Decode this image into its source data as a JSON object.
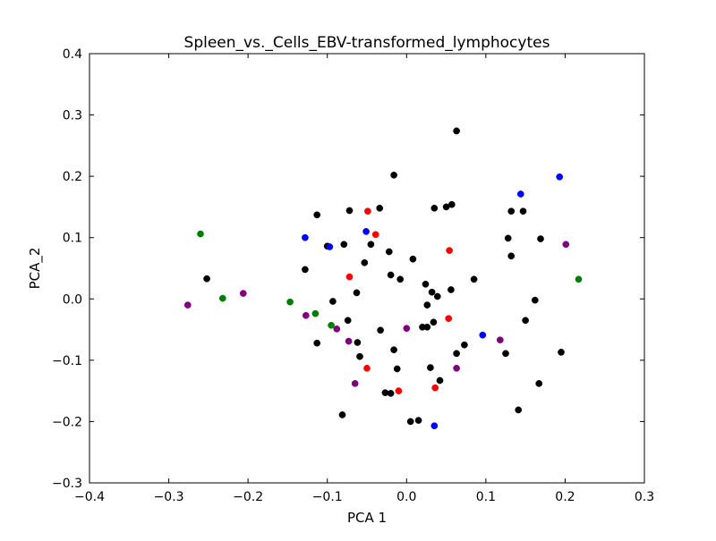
{
  "chart_data": {
    "type": "scatter",
    "title": "Spleen_vs._Cells_EBV-transformed_lymphocytes",
    "xlabel": "PCA 1",
    "ylabel": "PCA_2",
    "xlim": [
      -0.4,
      0.3
    ],
    "ylim": [
      -0.3,
      0.4
    ],
    "xticks": [
      -0.4,
      -0.3,
      -0.2,
      -0.1,
      0.0,
      0.1,
      0.2,
      0.3
    ],
    "yticks": [
      -0.3,
      -0.2,
      -0.1,
      0.0,
      0.1,
      0.2,
      0.3,
      0.4
    ],
    "xtick_labels": [
      "−0.4",
      "−0.3",
      "−0.2",
      "−0.1",
      "0.0",
      "0.1",
      "0.2",
      "0.3"
    ],
    "ytick_labels": [
      "−0.3",
      "−0.2",
      "−0.1",
      "0.0",
      "0.1",
      "0.2",
      "0.3",
      "0.4"
    ],
    "grid": false,
    "legend": "none",
    "series": [
      {
        "color": "#000000",
        "points": [
          [
            0.063,
            0.274
          ],
          [
            -0.016,
            0.202
          ],
          [
            -0.113,
            0.137
          ],
          [
            -0.072,
            0.144
          ],
          [
            -0.034,
            0.148
          ],
          [
            0.035,
            0.148
          ],
          [
            0.05,
            0.15
          ],
          [
            0.057,
            0.154
          ],
          [
            0.132,
            0.143
          ],
          [
            0.147,
            0.143
          ],
          [
            -0.1,
            0.086
          ],
          [
            -0.079,
            0.089
          ],
          [
            -0.045,
            0.089
          ],
          [
            0.128,
            0.099
          ],
          [
            0.169,
            0.098
          ],
          [
            -0.128,
            0.048
          ],
          [
            -0.053,
            0.059
          ],
          [
            -0.022,
            0.077
          ],
          [
            0.008,
            0.065
          ],
          [
            0.132,
            0.07
          ],
          [
            -0.252,
            0.033
          ],
          [
            -0.02,
            0.039
          ],
          [
            -0.008,
            0.032
          ],
          [
            0.085,
            0.032
          ],
          [
            0.024,
            0.024
          ],
          [
            -0.063,
            0.01
          ],
          [
            0.032,
            0.011
          ],
          [
            0.039,
            0.004
          ],
          [
            0.056,
            0.015
          ],
          [
            -0.093,
            -0.004
          ],
          [
            0.026,
            -0.01
          ],
          [
            0.162,
            -0.002
          ],
          [
            -0.074,
            -0.035
          ],
          [
            -0.033,
            -0.051
          ],
          [
            0.034,
            -0.038
          ],
          [
            0.02,
            -0.046
          ],
          [
            0.026,
            -0.046
          ],
          [
            0.15,
            -0.035
          ],
          [
            -0.113,
            -0.072
          ],
          [
            -0.062,
            -0.071
          ],
          [
            -0.016,
            -0.083
          ],
          [
            0.073,
            -0.075
          ],
          [
            0.063,
            -0.089
          ],
          [
            0.125,
            -0.089
          ],
          [
            0.195,
            -0.087
          ],
          [
            -0.059,
            -0.094
          ],
          [
            -0.012,
            -0.114
          ],
          [
            0.03,
            -0.112
          ],
          [
            0.042,
            -0.133
          ],
          [
            -0.027,
            -0.153
          ],
          [
            -0.02,
            -0.154
          ],
          [
            0.167,
            -0.138
          ],
          [
            -0.081,
            -0.189
          ],
          [
            0.005,
            -0.2
          ],
          [
            0.015,
            -0.198
          ],
          [
            0.141,
            -0.181
          ]
        ]
      },
      {
        "color": "#ff0000",
        "points": [
          [
            -0.049,
            0.143
          ],
          [
            -0.039,
            0.105
          ],
          [
            0.054,
            0.079
          ],
          [
            -0.072,
            0.036
          ],
          [
            0.053,
            -0.032
          ],
          [
            -0.05,
            -0.113
          ],
          [
            -0.01,
            -0.15
          ],
          [
            0.036,
            -0.145
          ]
        ]
      },
      {
        "color": "#0000ff",
        "points": [
          [
            0.193,
            0.199
          ],
          [
            0.144,
            0.171
          ],
          [
            -0.051,
            0.11
          ],
          [
            -0.128,
            0.1
          ],
          [
            -0.097,
            0.085
          ],
          [
            0.096,
            -0.059
          ],
          [
            0.035,
            -0.207
          ]
        ]
      },
      {
        "color": "#008000",
        "points": [
          [
            -0.26,
            0.106
          ],
          [
            -0.232,
            0.001
          ],
          [
            -0.147,
            -0.005
          ],
          [
            -0.115,
            -0.024
          ],
          [
            -0.095,
            -0.043
          ],
          [
            0.217,
            0.032
          ]
        ]
      },
      {
        "color": "#800080",
        "points": [
          [
            -0.276,
            -0.01
          ],
          [
            -0.206,
            0.009
          ],
          [
            -0.127,
            -0.027
          ],
          [
            -0.088,
            -0.049
          ],
          [
            -0.073,
            -0.069
          ],
          [
            -0.065,
            -0.138
          ],
          [
            0.0,
            -0.048
          ],
          [
            0.063,
            -0.113
          ],
          [
            0.118,
            -0.067
          ],
          [
            0.201,
            0.089
          ]
        ]
      }
    ]
  }
}
